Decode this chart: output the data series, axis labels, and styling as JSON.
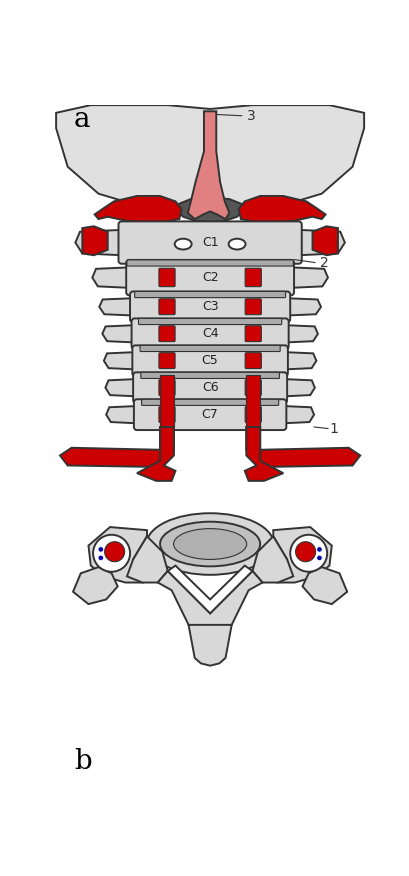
{
  "bg_color": "#ffffff",
  "bone_color": "#d8d8d8",
  "bone_edge": "#333333",
  "artery_red": "#cc0000",
  "artery_pink": "#e08080",
  "skull_color": "#e0e0e0",
  "dark_gray": "#555555",
  "label_a": "a",
  "label_b": "b",
  "vertebrae_labels": [
    "C1",
    "C2",
    "C3",
    "C4",
    "C5",
    "C6",
    "C7"
  ],
  "ann1": "1",
  "ann2": "2",
  "ann3": "3",
  "red_dot": "#cc0000",
  "blue_dot": "#0000aa",
  "white": "#ffffff",
  "lw": 1.4
}
